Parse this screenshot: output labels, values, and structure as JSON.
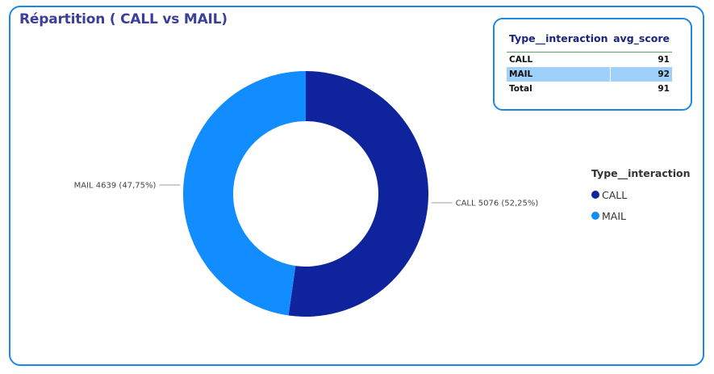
{
  "title": "Répartition ( CALL vs MAIL)",
  "chart_data": {
    "type": "pie",
    "donut": true,
    "legend_title": "Type__interaction",
    "legend_position": "right",
    "slices": [
      {
        "name": "CALL",
        "value": 5076,
        "percent": "52,25%",
        "color": "#0f249c"
      },
      {
        "name": "MAIL",
        "value": 4639,
        "percent": "47,75%",
        "color": "#118dff"
      }
    ]
  },
  "table": {
    "columns": [
      "Type__interaction",
      "avg_score"
    ],
    "rows": [
      {
        "type": "CALL",
        "score": "91",
        "selected": false
      },
      {
        "type": "MAIL",
        "score": "92",
        "selected": true
      },
      {
        "type": "Total",
        "score": "91",
        "selected": false
      }
    ]
  }
}
